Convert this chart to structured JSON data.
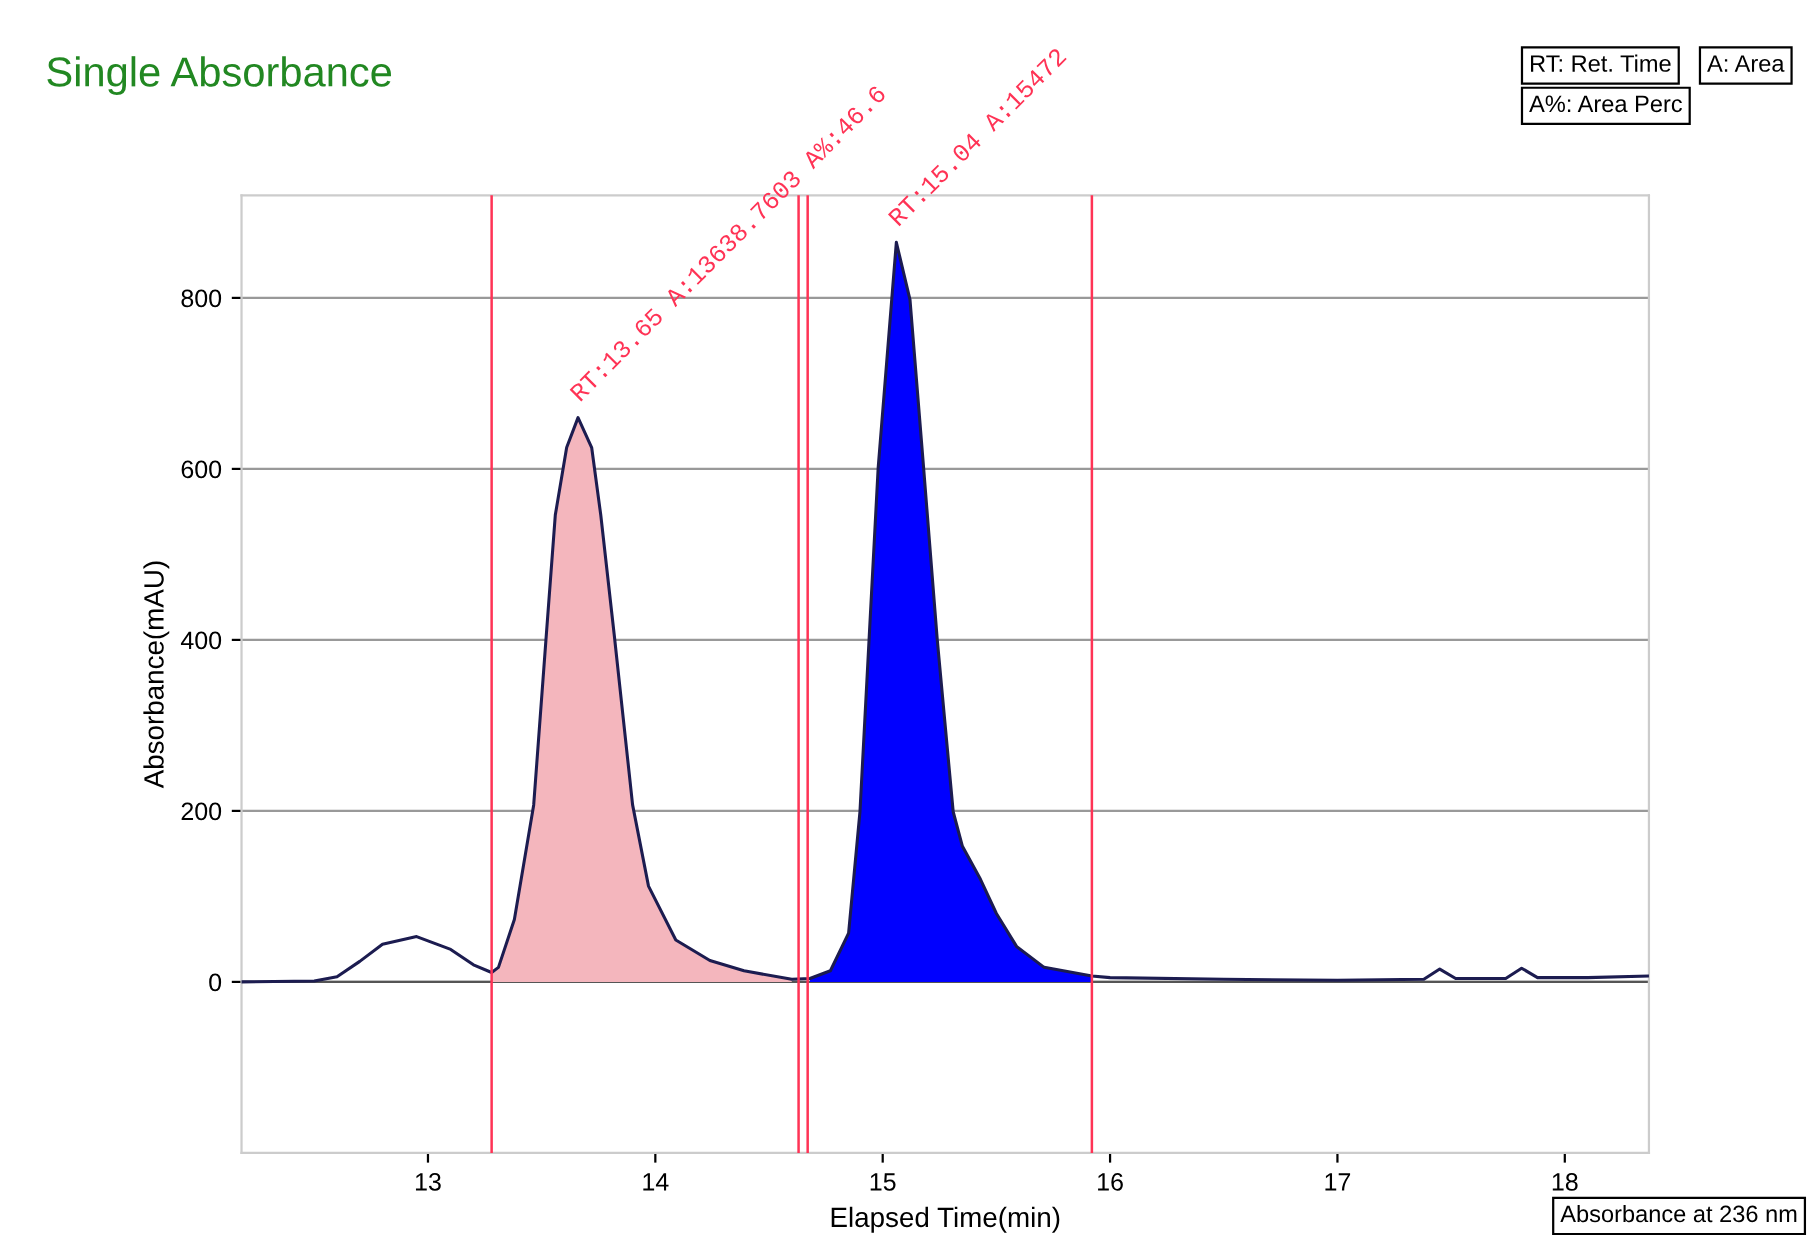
{
  "chart_data": {
    "type": "line",
    "title": "Single Absorbance",
    "xlabel": "Elapsed Time(min)",
    "ylabel": "Absorbance(mAU)",
    "xlim": [
      12.18,
      18.37
    ],
    "xticks": [
      13,
      14,
      15,
      16,
      17,
      18
    ],
    "ylim": [
      -200,
      920
    ],
    "yticks": [
      0,
      200,
      400,
      600,
      800
    ],
    "grid": "y",
    "series": [
      {
        "type": "area",
        "color": "#f4b6bd",
        "x": [
          13.28,
          13.31,
          13.38,
          13.465,
          13.52,
          13.56,
          13.61,
          13.66,
          13.72,
          13.76,
          13.82,
          13.9,
          13.97,
          14.09,
          14.24,
          14.39,
          14.6
        ],
        "values": [
          11,
          17,
          73,
          207,
          404,
          546,
          625,
          660,
          625,
          546,
          404,
          207,
          112,
          49,
          25,
          13,
          3
        ]
      },
      {
        "type": "area",
        "color": "#0000ff",
        "x": [
          14.68,
          14.77,
          14.85,
          14.9,
          14.94,
          14.98,
          15.06,
          15.12,
          15.18,
          15.24,
          15.31,
          15.35,
          15.43,
          15.5,
          15.59,
          15.71,
          15.92
        ],
        "values": [
          4,
          13,
          57,
          199,
          400,
          601,
          865,
          798,
          601,
          400,
          199,
          159,
          120,
          80,
          41,
          17,
          7
        ]
      },
      {
        "color": "#1c1c50",
        "x": [
          12.18,
          12.5,
          12.6,
          12.7,
          12.8,
          12.95,
          13.1,
          13.2,
          13.28,
          13.31,
          13.38,
          13.465,
          13.52,
          13.56,
          13.61,
          13.66,
          13.72,
          13.76,
          13.82,
          13.9,
          13.97,
          14.09,
          14.24,
          14.39,
          14.6,
          14.68,
          14.77,
          14.85,
          14.9,
          14.94,
          14.98,
          15.06,
          15.12,
          15.18,
          15.24,
          15.31,
          15.35,
          15.43,
          15.5,
          15.59,
          15.71,
          15.92,
          16.0,
          16.5,
          17.0,
          17.38,
          17.45,
          17.52,
          17.74,
          17.81,
          17.88,
          18.1,
          18.37
        ],
        "values": [
          0,
          1,
          6,
          24,
          44,
          53,
          38,
          20,
          11,
          17,
          73,
          207,
          404,
          546,
          625,
          660,
          625,
          546,
          404,
          207,
          112,
          49,
          25,
          13,
          3,
          4,
          13,
          57,
          199,
          400,
          601,
          865,
          798,
          601,
          400,
          199,
          159,
          120,
          80,
          41,
          17,
          7,
          5,
          3,
          2,
          3,
          15,
          4,
          4,
          16,
          5,
          5,
          7
        ]
      }
    ],
    "ref_lines": [
      {
        "axis": "x",
        "value": 13.28,
        "color": "#ff3355"
      },
      {
        "axis": "x",
        "value": 14.63,
        "color": "#ff3355"
      },
      {
        "axis": "x",
        "value": 14.67,
        "color": "#ff3355"
      },
      {
        "axis": "x",
        "value": 15.92,
        "color": "#ff3355"
      }
    ],
    "annotations": [
      {
        "text": "RT:13.65 A:13638.7603 A%:46.6",
        "x": 13.66,
        "y": 660
      },
      {
        "text": "RT:15.04 A:15472",
        "x": 15.06,
        "y": 865
      },
      "RT: Ret. Time",
      "A: Area",
      "A%: Area Perc",
      "Absorbance at 236 nm"
    ]
  }
}
